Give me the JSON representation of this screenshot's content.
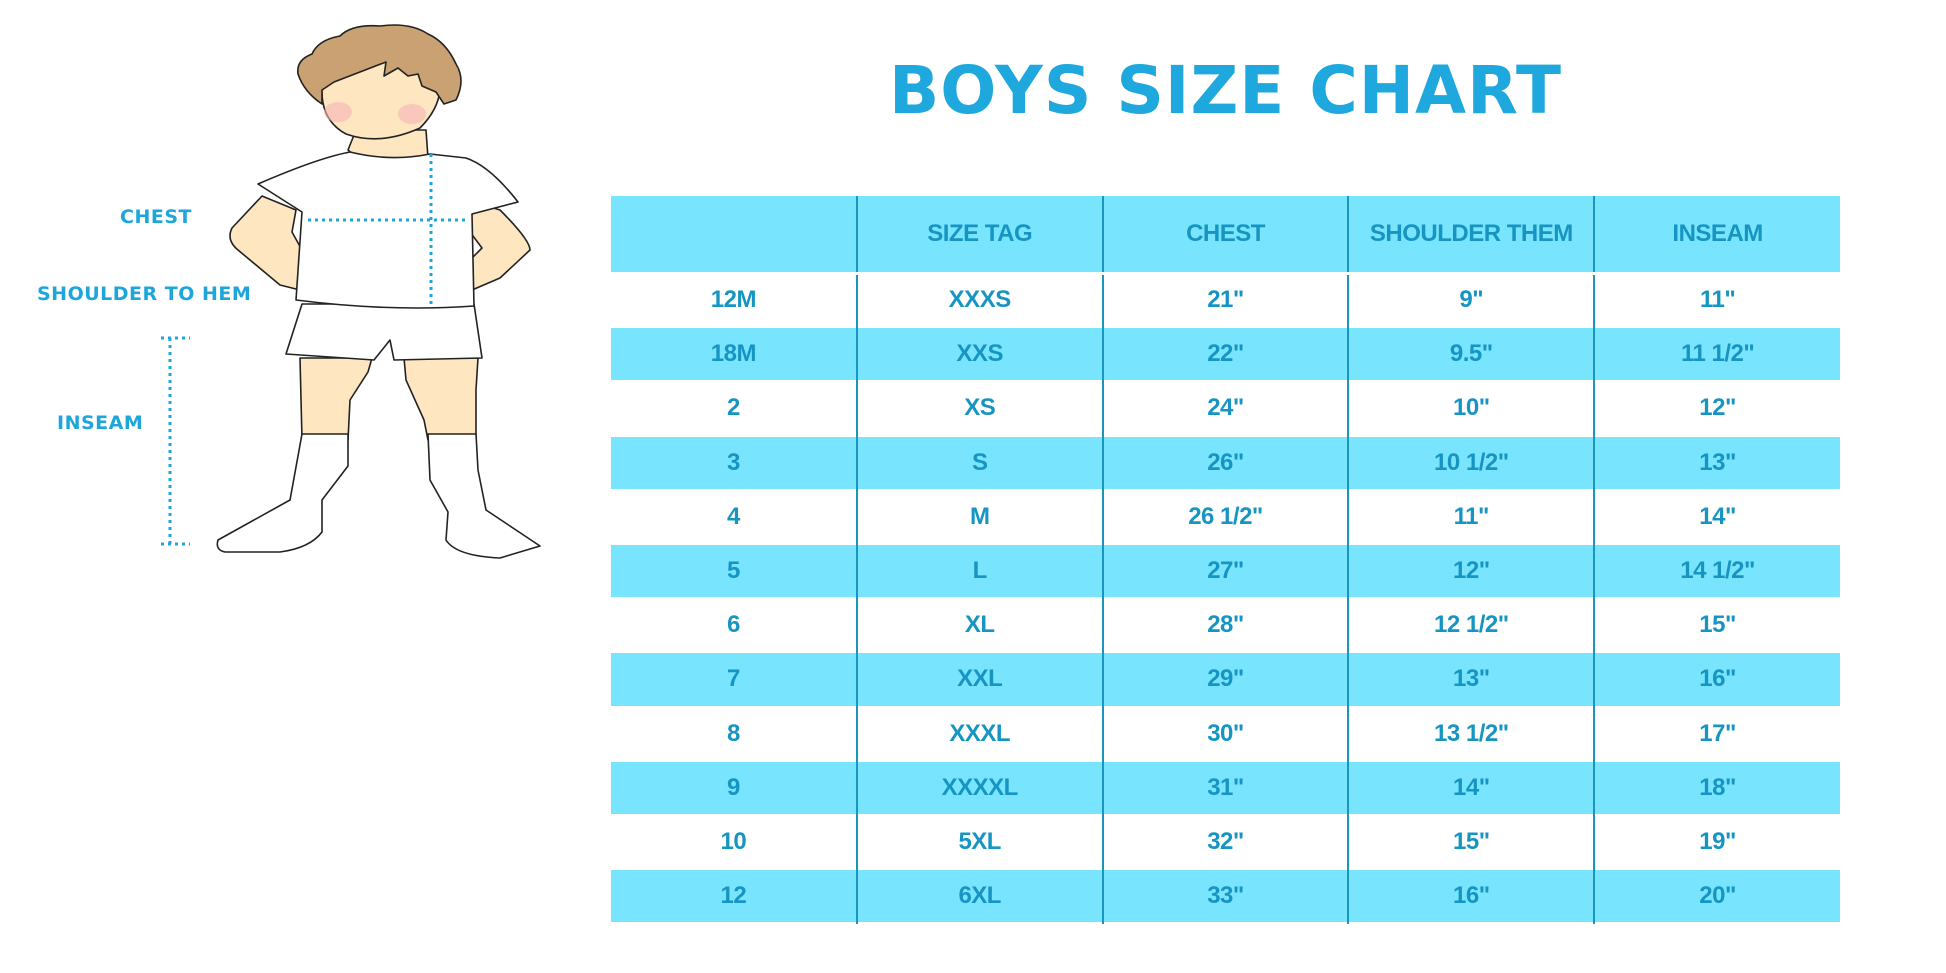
{
  "title": "BOYS SIZE CHART",
  "figure": {
    "labels": {
      "chest": "CHEST",
      "shoulder_to_hem": "SHOULDER TO HEM",
      "inseam": "INSEAM"
    }
  },
  "colors": {
    "title": "#1ea8dd",
    "table_stripe": "#78e4fd",
    "table_text": "#1795c2",
    "measure_line": "#1ea6dc"
  },
  "table": {
    "headers": [
      "",
      "SIZE TAG",
      "CHEST",
      "SHOULDER THEM",
      "INSEAM"
    ],
    "rows": [
      [
        "12M",
        "XXXS",
        "21\"",
        "9\"",
        "11\""
      ],
      [
        "18M",
        "XXS",
        "22\"",
        "9.5\"",
        "11 1/2\""
      ],
      [
        "2",
        "XS",
        "24\"",
        "10\"",
        "12\""
      ],
      [
        "3",
        "S",
        "26\"",
        "10 1/2\"",
        "13\""
      ],
      [
        "4",
        "M",
        "26 1/2\"",
        "11\"",
        "14\""
      ],
      [
        "5",
        "L",
        "27\"",
        "12\"",
        "14 1/2\""
      ],
      [
        "6",
        "XL",
        "28\"",
        "12 1/2\"",
        "15\""
      ],
      [
        "7",
        "XXL",
        "29\"",
        "13\"",
        "16\""
      ],
      [
        "8",
        "XXXL",
        "30\"",
        "13 1/2\"",
        "17\""
      ],
      [
        "9",
        "XXXXL",
        "31\"",
        "14\"",
        "18\""
      ],
      [
        "10",
        "5XL",
        "32\"",
        "15\"",
        "19\""
      ],
      [
        "12",
        "6XL",
        "33\"",
        "16\"",
        "20\""
      ]
    ]
  }
}
